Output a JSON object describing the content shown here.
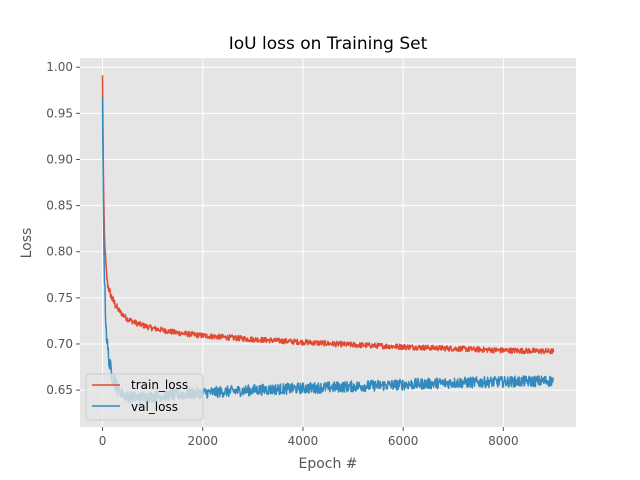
{
  "chart_data": {
    "type": "line",
    "title": "IoU loss on Training Set",
    "xlabel": "Epoch #",
    "ylabel": "Loss",
    "xlim": [
      -450,
      9450
    ],
    "ylim": [
      0.61,
      1.01
    ],
    "xticks": [
      0,
      2000,
      4000,
      6000,
      8000
    ],
    "xtick_labels": [
      "0",
      "2000",
      "4000",
      "6000",
      "8000"
    ],
    "yticks": [
      0.65,
      0.7,
      0.75,
      0.8,
      0.85,
      0.9,
      0.95,
      1.0
    ],
    "ytick_labels": [
      "0.65",
      "0.70",
      "0.75",
      "0.80",
      "0.85",
      "0.90",
      "0.95",
      "1.00"
    ],
    "grid": true,
    "legend": "lower-left",
    "background_color": "#e5e5e5",
    "series": [
      {
        "name": "train_loss",
        "color": "#e24a33",
        "noise": 0.003,
        "x": [
          0,
          10,
          20,
          40,
          60,
          80,
          100,
          150,
          200,
          300,
          400,
          500,
          700,
          1000,
          1500,
          2000,
          2500,
          3000,
          4000,
          5000,
          6000,
          7000,
          8000,
          9000
        ],
        "values": [
          0.99,
          0.93,
          0.87,
          0.815,
          0.79,
          0.775,
          0.765,
          0.755,
          0.748,
          0.738,
          0.732,
          0.727,
          0.722,
          0.717,
          0.712,
          0.709,
          0.707,
          0.705,
          0.702,
          0.699,
          0.697,
          0.695,
          0.693,
          0.692
        ]
      },
      {
        "name": "val_loss",
        "color": "#348abd",
        "noise": 0.006,
        "x": [
          0,
          10,
          20,
          40,
          60,
          80,
          100,
          150,
          200,
          300,
          400,
          500,
          700,
          1000,
          1500,
          2000,
          3000,
          4000,
          5000,
          6000,
          7000,
          8000,
          9000
        ],
        "values": [
          0.96,
          0.9,
          0.84,
          0.77,
          0.73,
          0.71,
          0.695,
          0.675,
          0.665,
          0.652,
          0.646,
          0.643,
          0.642,
          0.643,
          0.645,
          0.647,
          0.65,
          0.652,
          0.654,
          0.656,
          0.658,
          0.659,
          0.66
        ]
      }
    ]
  }
}
